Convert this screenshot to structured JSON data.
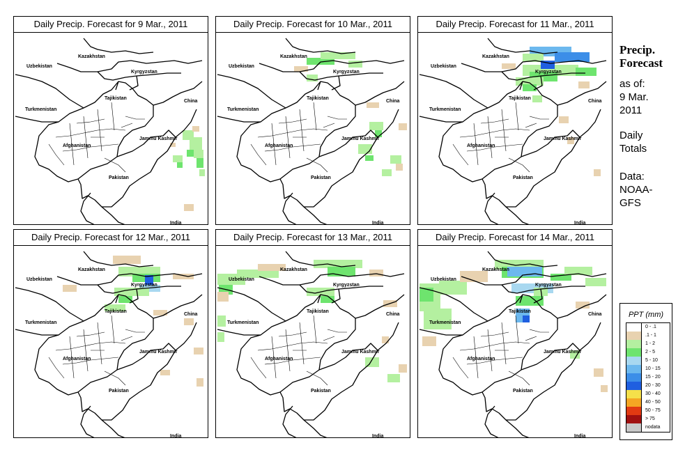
{
  "panels": [
    {
      "title": "Daily Precip. Forecast for  9 Mar., 2011"
    },
    {
      "title": "Daily Precip. Forecast for  10 Mar., 2011"
    },
    {
      "title": "Daily Precip. Forecast for  11 Mar., 2011"
    },
    {
      "title": "Daily Precip. Forecast for  12 Mar., 2011"
    },
    {
      "title": "Daily Precip. Forecast for  13 Mar., 2011"
    },
    {
      "title": "Daily Precip. Forecast for  14 Mar., 2011"
    }
  ],
  "map_labels": {
    "uzbekistan": "Uzbekistan",
    "kazakhstan": "Kazakhstan",
    "kyrgyzstan": "Kyrgyzstan",
    "tajikistan": "Tajikistan",
    "turkmenistan": "Turkmenistan",
    "china": "China",
    "jammu_kashmir": "Jammu Kashmir",
    "afghanistan": "Afghanistan",
    "pakistan": "Pakistan",
    "india": "India"
  },
  "sidebar": {
    "title_line1": "Precip.",
    "title_line2": "Forecast",
    "asof_line1": "as of:",
    "asof_line2": "9 Mar.",
    "asof_line3": "2011",
    "daily_line1": "Daily",
    "daily_line2": "Totals",
    "data_line1": "Data:",
    "data_line2": "NOAA-",
    "data_line3": "GFS"
  },
  "legend": {
    "title": "PPT (mm)",
    "items": [
      {
        "label": "0 - .1",
        "color": "#ffffff"
      },
      {
        "label": ".1 - 1",
        "color": "#e8d2b0"
      },
      {
        "label": "1 - 2",
        "color": "#b4f0a0"
      },
      {
        "label": "2 - 5",
        "color": "#6ee46e"
      },
      {
        "label": "5 - 10",
        "color": "#a8d8f0"
      },
      {
        "label": "10 - 15",
        "color": "#6cb8ee"
      },
      {
        "label": "15 - 20",
        "color": "#3c8ee8"
      },
      {
        "label": "20 - 30",
        "color": "#1f5fe0"
      },
      {
        "label": "30 - 40",
        "color": "#f5e04a"
      },
      {
        "label": "40 - 50",
        "color": "#f5a623"
      },
      {
        "label": "50 - 75",
        "color": "#e23a12"
      },
      {
        "label": "> 75",
        "color": "#a01010"
      },
      {
        "label": "nodata",
        "color": "#c8c8c8"
      }
    ]
  }
}
